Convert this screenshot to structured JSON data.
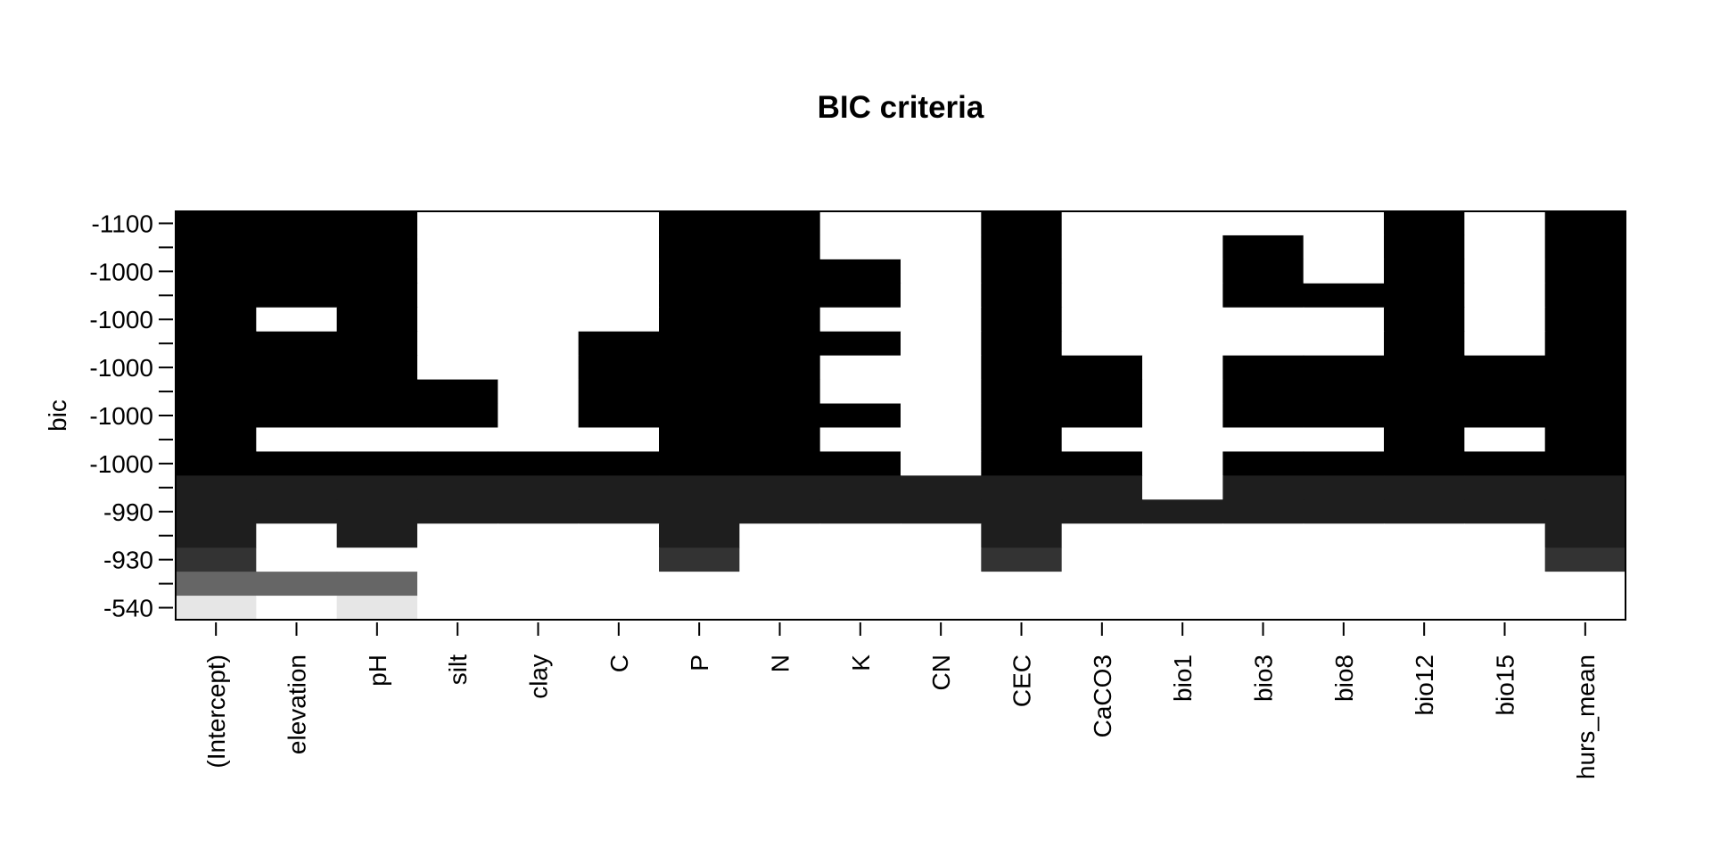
{
  "chart_data": {
    "type": "heatmap",
    "title": "BIC criteria",
    "ylabel": "bic",
    "xlabel": "",
    "columns": [
      "(Intercept)",
      "elevation",
      "pH",
      "silt",
      "clay",
      "C",
      "P",
      "N",
      "K",
      "CN",
      "CEC",
      "CaCO3",
      "bio1",
      "bio3",
      "bio8",
      "bio12",
      "bio15",
      "hurs_mean"
    ],
    "y_tick_labels": [
      "-1100",
      "-1000",
      "-1000",
      "-1000",
      "-1000",
      "-1000",
      "-990",
      "-930",
      "-540"
    ],
    "colors": {
      "black": "#000000",
      "dark": "#1e1e1e",
      "mid_dark": "#333333",
      "gray": "#666666",
      "light": "#e6e6e6",
      "white": "#ffffff"
    },
    "rows": [
      {
        "color": "black",
        "included": [
          1,
          1,
          1,
          0,
          0,
          0,
          1,
          1,
          0,
          0,
          1,
          0,
          0,
          0,
          0,
          1,
          0,
          1
        ]
      },
      {
        "color": "black",
        "included": [
          1,
          1,
          1,
          0,
          0,
          0,
          1,
          1,
          0,
          0,
          1,
          0,
          0,
          1,
          0,
          1,
          0,
          1
        ]
      },
      {
        "color": "black",
        "included": [
          1,
          1,
          1,
          0,
          0,
          0,
          1,
          1,
          1,
          0,
          1,
          0,
          0,
          1,
          0,
          1,
          0,
          1
        ]
      },
      {
        "color": "black",
        "included": [
          1,
          1,
          1,
          0,
          0,
          0,
          1,
          1,
          1,
          0,
          1,
          0,
          0,
          1,
          1,
          1,
          0,
          1
        ]
      },
      {
        "color": "black",
        "included": [
          1,
          0,
          1,
          0,
          0,
          0,
          1,
          1,
          0,
          0,
          1,
          0,
          0,
          0,
          0,
          1,
          0,
          1
        ]
      },
      {
        "color": "black",
        "included": [
          1,
          1,
          1,
          0,
          0,
          1,
          1,
          1,
          1,
          0,
          1,
          0,
          0,
          0,
          0,
          1,
          0,
          1
        ]
      },
      {
        "color": "black",
        "included": [
          1,
          1,
          1,
          0,
          0,
          1,
          1,
          1,
          0,
          0,
          1,
          1,
          0,
          1,
          1,
          1,
          1,
          1
        ]
      },
      {
        "color": "black",
        "included": [
          1,
          1,
          1,
          1,
          0,
          1,
          1,
          1,
          0,
          0,
          1,
          1,
          0,
          1,
          1,
          1,
          1,
          1
        ]
      },
      {
        "color": "black",
        "included": [
          1,
          1,
          1,
          1,
          0,
          1,
          1,
          1,
          1,
          0,
          1,
          1,
          0,
          1,
          1,
          1,
          1,
          1
        ]
      },
      {
        "color": "black",
        "included": [
          1,
          0,
          0,
          0,
          0,
          0,
          1,
          1,
          0,
          0,
          1,
          0,
          0,
          0,
          0,
          1,
          0,
          1
        ]
      },
      {
        "color": "black",
        "included": [
          1,
          1,
          1,
          1,
          1,
          1,
          1,
          1,
          1,
          0,
          1,
          1,
          0,
          1,
          1,
          1,
          1,
          1
        ]
      },
      {
        "color": "dark",
        "included": [
          1,
          1,
          1,
          1,
          1,
          1,
          1,
          1,
          1,
          1,
          1,
          1,
          0,
          1,
          1,
          1,
          1,
          1
        ]
      },
      {
        "color": "dark",
        "included": [
          1,
          1,
          1,
          1,
          1,
          1,
          1,
          1,
          1,
          1,
          1,
          1,
          1,
          1,
          1,
          1,
          1,
          1
        ]
      },
      {
        "color": "dark",
        "included": [
          1,
          0,
          1,
          0,
          0,
          0,
          1,
          0,
          0,
          0,
          1,
          0,
          0,
          0,
          0,
          0,
          0,
          1
        ]
      },
      {
        "color": "mid_dark",
        "included": [
          1,
          0,
          0,
          0,
          0,
          0,
          1,
          0,
          0,
          0,
          1,
          0,
          0,
          0,
          0,
          0,
          0,
          1
        ]
      },
      {
        "color": "gray",
        "included": [
          1,
          1,
          1,
          0,
          0,
          0,
          0,
          0,
          0,
          0,
          0,
          0,
          0,
          0,
          0,
          0,
          0,
          0
        ]
      },
      {
        "color": "light",
        "included": [
          1,
          0,
          1,
          0,
          0,
          0,
          0,
          0,
          0,
          0,
          0,
          0,
          0,
          0,
          0,
          0,
          0,
          0
        ]
      }
    ]
  }
}
